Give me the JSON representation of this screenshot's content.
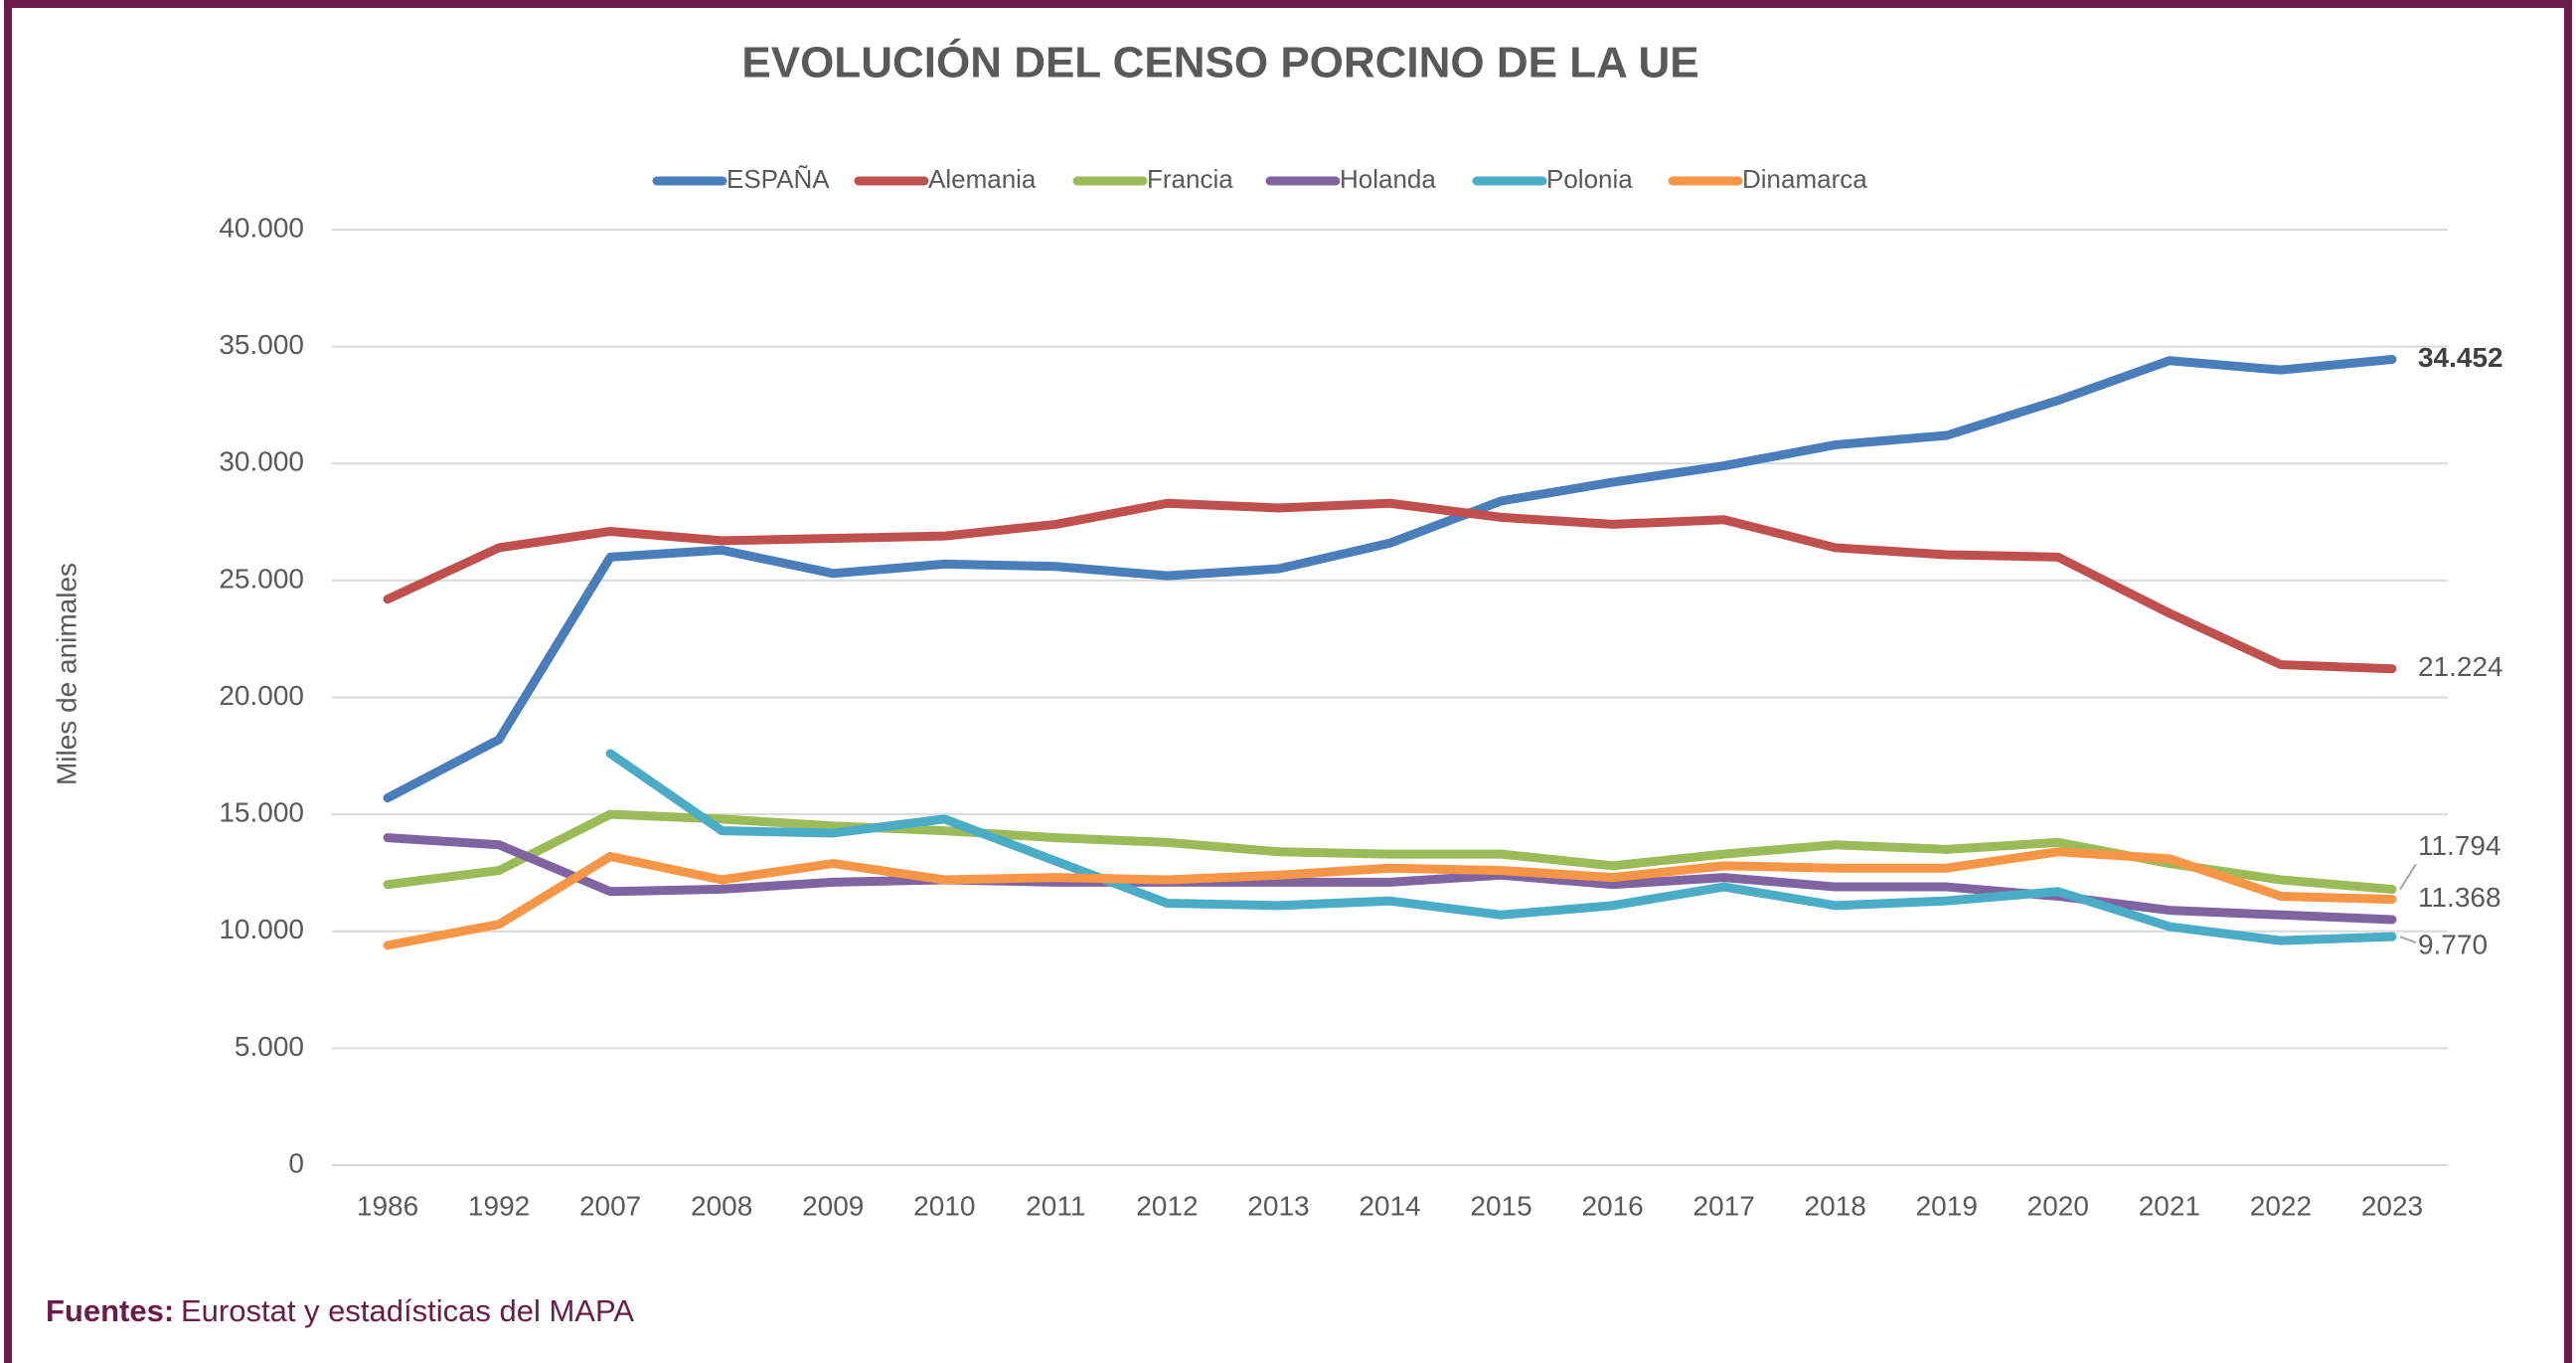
{
  "chart_data": {
    "type": "line",
    "title": "EVOLUCIÓN DEL CENSO PORCINO DE LA UE",
    "y_label": "Miles de animales",
    "source_label": "Fuentes:",
    "source_text": "Eurostat y estadísticas del MAPA",
    "categories": [
      "1986",
      "1992",
      "2007",
      "2008",
      "2009",
      "2010",
      "2011",
      "2012",
      "2013",
      "2014",
      "2015",
      "2016",
      "2017",
      "2018",
      "2019",
      "2020",
      "2021",
      "2022",
      "2023"
    ],
    "ylim": [
      0,
      40000
    ],
    "yticks": [
      0,
      {
        "value": 5000,
        "label": "5.000"
      },
      {
        "value": 10000,
        "label": "10.000"
      },
      {
        "value": 15000,
        "label": "15.000"
      },
      {
        "value": 20000,
        "label": "20.000"
      },
      {
        "value": 25000,
        "label": "25.000"
      },
      {
        "value": 30000,
        "label": "30.000"
      },
      {
        "value": 35000,
        "label": "35.000"
      },
      {
        "value": 40000,
        "label": "40.000"
      }
    ],
    "grid": true,
    "legend": "top",
    "series": [
      {
        "name": "ESPAÑA",
        "color": "#4a7ebb",
        "values": [
          15700,
          18200,
          26000,
          26300,
          25300,
          25700,
          25600,
          25200,
          25500,
          26600,
          28400,
          29200,
          29900,
          30800,
          31200,
          32700,
          34400,
          34000,
          34452
        ],
        "value_labels": [
          null,
          null,
          null,
          null,
          null,
          null,
          null,
          null,
          null,
          null,
          null,
          null,
          null,
          null,
          null,
          null,
          null,
          null,
          "34.452"
        ]
      },
      {
        "name": "Alemania",
        "color": "#c0504d",
        "values": [
          24200,
          26400,
          27100,
          26700,
          26800,
          26900,
          27400,
          28300,
          28100,
          28300,
          27700,
          27400,
          27600,
          26400,
          26100,
          26000,
          23600,
          21400,
          21224
        ],
        "value_labels": [
          null,
          null,
          null,
          null,
          null,
          null,
          null,
          null,
          null,
          null,
          null,
          null,
          null,
          null,
          null,
          null,
          null,
          null,
          "21.224"
        ]
      },
      {
        "name": "Francia",
        "color": "#9bbb59",
        "values": [
          12000,
          12600,
          15000,
          14800,
          14500,
          14300,
          14000,
          13800,
          13400,
          13300,
          13300,
          12800,
          13300,
          13700,
          13500,
          13800,
          12900,
          12200,
          11794
        ],
        "value_labels": [
          null,
          null,
          null,
          null,
          null,
          null,
          null,
          null,
          null,
          null,
          null,
          null,
          null,
          null,
          null,
          null,
          null,
          null,
          "11.794"
        ]
      },
      {
        "name": "Holanda",
        "color": "#8064a2",
        "values": [
          14000,
          13700,
          11700,
          11800,
          12100,
          12200,
          12100,
          12100,
          12100,
          12100,
          12400,
          12000,
          12300,
          11900,
          11900,
          11500,
          10900,
          10700,
          10500
        ]
      },
      {
        "name": "Polonia",
        "color": "#4bacc6",
        "values": [
          null,
          null,
          17600,
          14300,
          14200,
          14800,
          13000,
          11200,
          11100,
          11300,
          10700,
          11100,
          11900,
          11100,
          11300,
          11700,
          10200,
          9600,
          9770
        ],
        "value_labels": [
          null,
          null,
          null,
          null,
          null,
          null,
          null,
          null,
          null,
          null,
          null,
          null,
          null,
          null,
          null,
          null,
          null,
          null,
          "9.770"
        ]
      },
      {
        "name": "Dinamarca",
        "color": "#f79646",
        "values": [
          9400,
          10300,
          13200,
          12200,
          12900,
          12200,
          12300,
          12200,
          12400,
          12700,
          12600,
          12300,
          12800,
          12700,
          12700,
          13400,
          13100,
          11500,
          11368
        ],
        "value_labels": [
          null,
          null,
          null,
          null,
          null,
          null,
          null,
          null,
          null,
          null,
          null,
          null,
          null,
          null,
          null,
          null,
          null,
          null,
          "11.368"
        ]
      }
    ]
  }
}
